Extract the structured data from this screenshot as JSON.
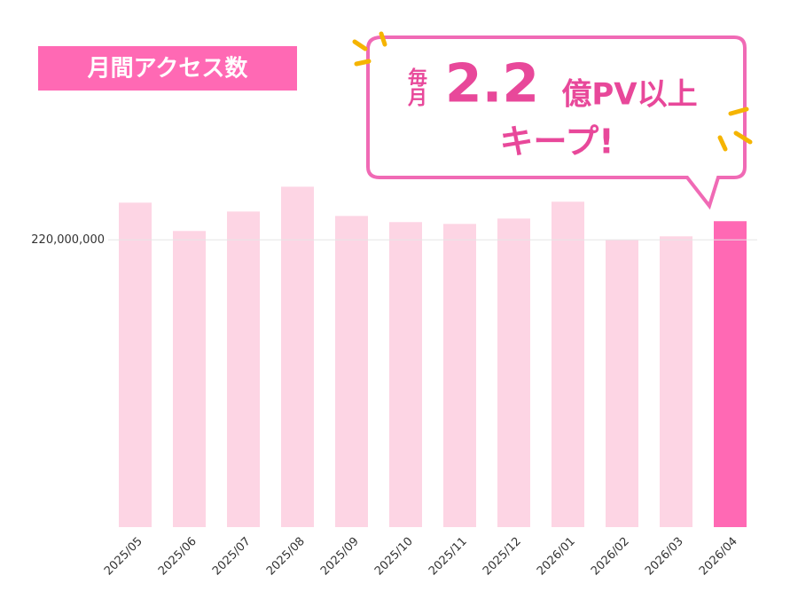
{
  "chart_data": {
    "type": "bar",
    "title": "月間アクセス数",
    "callout": [
      "毎月",
      "2.2",
      "億PV以上",
      "キープ!"
    ],
    "categories": [
      "2025/05",
      "2025/06",
      "2025/07",
      "2025/08",
      "2025/09",
      "2025/10",
      "2025/11",
      "2025/12",
      "2026/01",
      "2026/02",
      "2026/03",
      "2026/04"
    ],
    "values": [
      248500000,
      226800000,
      241700000,
      260700000,
      238300000,
      233600000,
      232200000,
      236300000,
      249200000,
      220000000,
      222700000,
      234300000
    ],
    "bar_colors": [
      "#fdd5e4",
      "#fdd5e4",
      "#fdd5e4",
      "#fdd5e4",
      "#fdd5e4",
      "#fdd5e4",
      "#fdd5e4",
      "#fdd5e4",
      "#fdd5e4",
      "#fdd5e4",
      "#fdd5e4",
      "#ff69b4"
    ],
    "ylim": [
      0,
      280000000
    ],
    "yticks": [
      {
        "value": 220000000,
        "label": "220,000,000"
      }
    ],
    "grid": true
  }
}
